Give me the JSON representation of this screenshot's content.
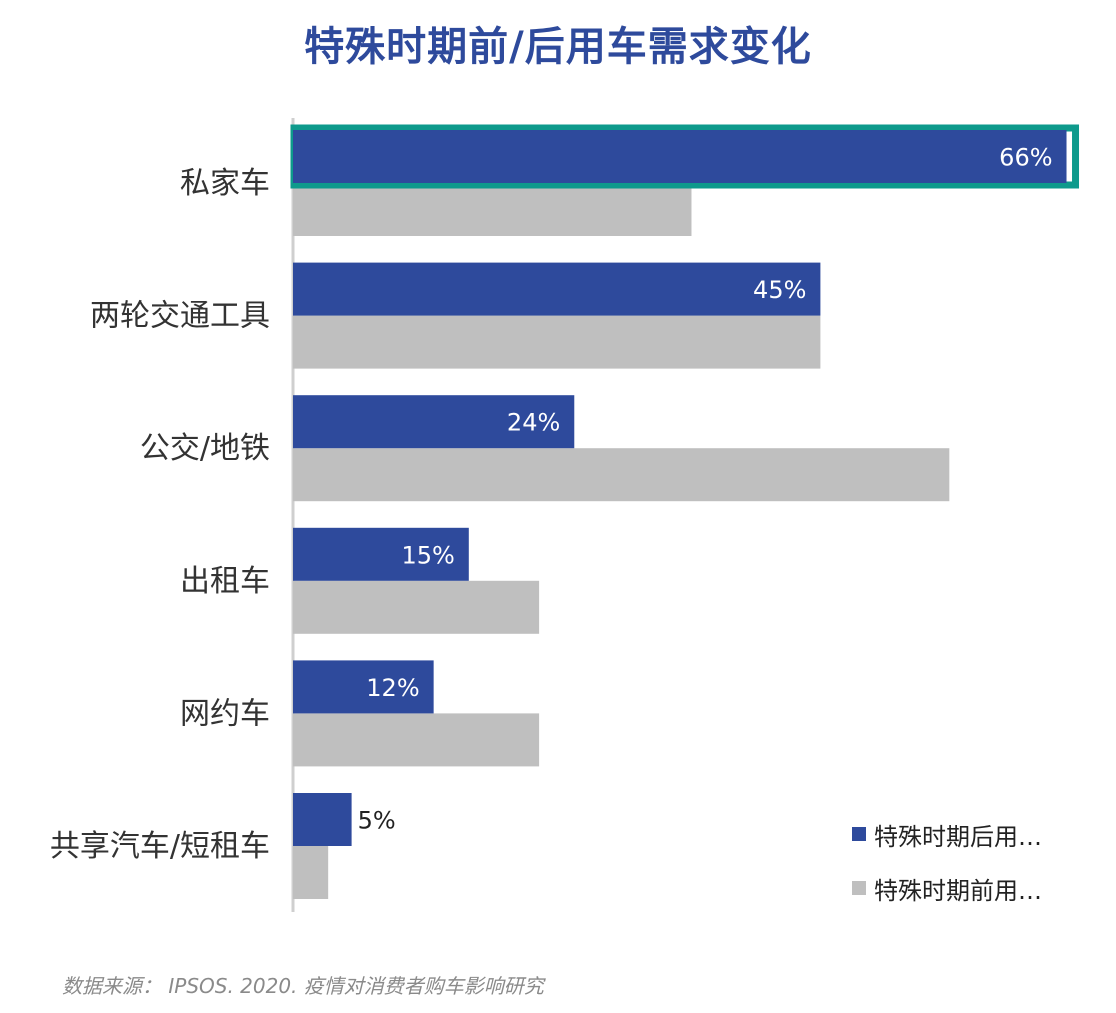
{
  "header": {
    "title": "特殊时期前/后用车需求变化"
  },
  "chart_data": {
    "type": "bar",
    "orientation": "horizontal",
    "title": "特殊时期前/后用车需求变化",
    "categories": [
      "私家车",
      "两轮交通工具",
      "公交/地铁",
      "出租车",
      "网约车",
      "共享汽车/短租车"
    ],
    "series": [
      {
        "name": "特殊时期后用…",
        "values": [
          66,
          45,
          24,
          15,
          12,
          5
        ],
        "labels": [
          "66%",
          "45%",
          "24%",
          "15%",
          "12%",
          "5%"
        ],
        "color": "#2e4a9c"
      },
      {
        "name": "特殊时期前用…",
        "values": [
          34,
          45,
          56,
          21,
          21,
          3
        ],
        "color": "#bfbfbf"
      }
    ],
    "xlim": [
      0,
      67
    ],
    "highlight": {
      "category": "私家车",
      "color": "#0e9a8c"
    },
    "legend_position": "bottom-right",
    "grid": false
  },
  "footer": {
    "source": "数据来源： IPSOS. 2020. 疫情对消费者购车影响研究"
  }
}
